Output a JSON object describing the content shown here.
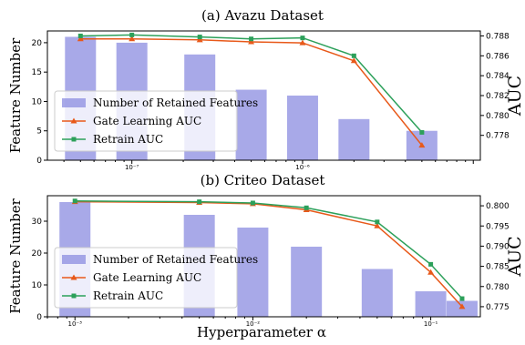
{
  "colors": {
    "bar": "#8b8ce0",
    "gate": "#e8591a",
    "retrain": "#2ca05a"
  },
  "xlabel": "Hyperparameter α",
  "chart_data": [
    {
      "type": "bar",
      "title": "(a) Avazu Dataset",
      "xscale": "log",
      "xlim": [
        3.2e-08,
        1.1e-05
      ],
      "xticks": [
        {
          "v": 1e-07,
          "label": "10⁻⁷"
        },
        {
          "v": 1e-06,
          "label": "10⁻⁶"
        }
      ],
      "ylabel": "Feature Number",
      "ylim": [
        0,
        22
      ],
      "yticks": [
        0,
        5,
        10,
        15,
        20
      ],
      "y2label": "AUC",
      "y2lim": [
        0.7755,
        0.7885
      ],
      "y2ticks": [
        0.778,
        0.78,
        0.782,
        0.784,
        0.786,
        0.788
      ],
      "legend_position": "lower-left",
      "series": [
        {
          "name": "Number of Retained Features",
          "kind": "bar",
          "axis": "left",
          "x": [
            5e-08,
            1e-07,
            2.5e-07,
            5e-07,
            1e-06,
            2e-06,
            5e-06
          ],
          "values": [
            21,
            20,
            18,
            12,
            11,
            7,
            5
          ]
        },
        {
          "name": "Gate Learning AUC",
          "kind": "line",
          "marker": "triangle",
          "axis": "right",
          "x": [
            5e-08,
            1e-07,
            2.5e-07,
            5e-07,
            1e-06,
            2e-06,
            5e-06
          ],
          "values": [
            0.7877,
            0.7877,
            0.7876,
            0.7874,
            0.7873,
            0.7855,
            0.777
          ]
        },
        {
          "name": "Retrain  AUC",
          "kind": "line",
          "marker": "square",
          "axis": "right",
          "x": [
            5e-08,
            1e-07,
            2.5e-07,
            5e-07,
            1e-06,
            2e-06,
            5e-06
          ],
          "values": [
            0.788,
            0.7881,
            0.7879,
            0.7877,
            0.7878,
            0.786,
            0.7783
          ]
        }
      ]
    },
    {
      "type": "bar",
      "title": "(b) Criteo Dataset",
      "xscale": "log",
      "xlim": [
        0.0007,
        0.19
      ],
      "xticks": [
        {
          "v": 0.001,
          "label": "10⁻³"
        },
        {
          "v": 0.01,
          "label": "10⁻²"
        },
        {
          "v": 0.1,
          "label": "10⁻¹"
        }
      ],
      "ylabel": "Feature Number",
      "ylim": [
        0,
        38
      ],
      "yticks": [
        0,
        10,
        20,
        30
      ],
      "y2label": "AUC",
      "y2lim": [
        0.7725,
        0.8025
      ],
      "y2ticks": [
        0.775,
        0.78,
        0.785,
        0.79,
        0.795,
        0.8
      ],
      "legend_position": "lower-left",
      "series": [
        {
          "name": "Number of Retained Features",
          "kind": "bar",
          "axis": "left",
          "x": [
            0.001,
            0.005,
            0.01,
            0.02,
            0.05,
            0.1,
            0.15
          ],
          "values": [
            36,
            32,
            28,
            22,
            15,
            8,
            5
          ]
        },
        {
          "name": "Gate Learning AUC",
          "kind": "line",
          "marker": "triangle",
          "axis": "right",
          "x": [
            0.001,
            0.005,
            0.01,
            0.02,
            0.05,
            0.1,
            0.15
          ],
          "values": [
            0.801,
            0.8008,
            0.8005,
            0.799,
            0.795,
            0.7835,
            0.775
          ]
        },
        {
          "name": "Retrain  AUC",
          "kind": "line",
          "marker": "square",
          "axis": "right",
          "x": [
            0.001,
            0.005,
            0.01,
            0.02,
            0.05,
            0.1,
            0.15
          ],
          "values": [
            0.8012,
            0.801,
            0.8007,
            0.7995,
            0.796,
            0.7855,
            0.777
          ]
        }
      ]
    }
  ]
}
